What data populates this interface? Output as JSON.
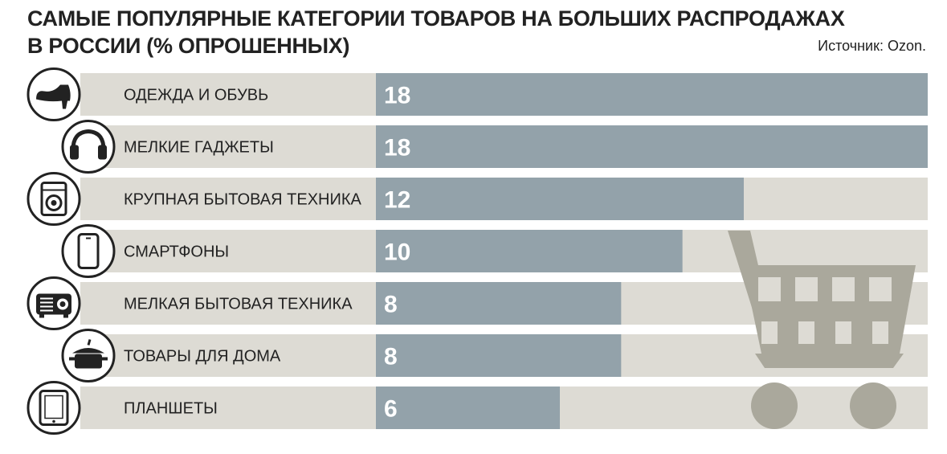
{
  "header": {
    "title_line1": "САМЫЕ ПОПУЛЯРНЫЕ КАТЕГОРИИ ТОВАРОВ НА БОЛЬШИХ РАСПРОДАЖАХ",
    "title_line2": "В РОССИИ (% ОПРОШЕННЫХ)",
    "source": "Источник: Ozon."
  },
  "colors": {
    "track": "#dddbd4",
    "bar": "#93a2aa",
    "cart": "#aaa89c",
    "icon_stroke": "#222222"
  },
  "chart_data": {
    "type": "bar",
    "orientation": "horizontal",
    "title": "САМЫЕ ПОПУЛЯРНЫЕ КАТЕГОРИИ ТОВАРОВ НА БОЛЬШИХ РАСПРОДАЖАХ В РОССИИ (% ОПРОШЕННЫХ)",
    "categories": [
      "ОДЕЖДА И ОБУВЬ",
      "МЕЛКИЕ ГАДЖЕТЫ",
      "КРУПНАЯ БЫТОВАЯ ТЕХНИКА",
      "СМАРТФОНЫ",
      "МЕЛКАЯ БЫТОВАЯ ТЕХНИКА",
      "ТОВАРЫ ДЛЯ ДОМА",
      "ПЛАНШЕТЫ"
    ],
    "values": [
      18,
      18,
      12,
      10,
      8,
      8,
      6
    ],
    "icons": [
      "shoe-icon",
      "headphones-icon",
      "washing-machine-icon",
      "smartphone-icon",
      "projector-icon",
      "pot-icon",
      "tablet-icon"
    ],
    "xlim": [
      0,
      18
    ],
    "grid": false,
    "legend": "none",
    "xlabel": "",
    "ylabel": ""
  }
}
